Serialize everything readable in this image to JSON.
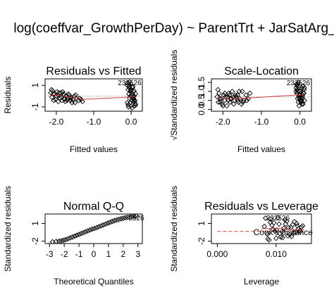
{
  "figure": {
    "title": "log(coeffvar_GrowthPerDay) ~ ParentTrt + JarSatArg_"
  },
  "chart_data": [
    {
      "type": "scatter",
      "title": "Residuals vs Fitted",
      "xlabel": "Fitted values",
      "ylabel": "Residuals",
      "xlim": [
        -2.3,
        0.3
      ],
      "ylim": [
        -1.4,
        1.6
      ],
      "x_ticks": [
        -2.0,
        -1.0,
        0.0
      ],
      "x_tick_labels": [
        "-2.0",
        "-1.0",
        "0.0"
      ],
      "y_ticks": [
        -1,
        1
      ],
      "y_tick_labels": [
        "-1",
        "1"
      ],
      "point_labels": [
        "23",
        "25",
        "26"
      ],
      "smooth_color": "#d04040",
      "series": [
        {
          "x": [
            -2.15,
            -2.12,
            -2.1,
            -2.05,
            -2.02,
            -1.98,
            -1.95,
            -1.9,
            -1.88,
            -1.85,
            -1.82,
            -1.8,
            -1.76,
            -1.72,
            -1.7,
            -1.66,
            -1.62,
            -1.6,
            -1.56,
            -1.5,
            -1.46,
            -1.4,
            -1.34,
            -1.3,
            -2.13,
            -2.07,
            -2.0,
            -1.93,
            -1.86,
            -1.78,
            -1.68,
            -1.58,
            -1.48,
            -1.38,
            -2.08,
            -1.95,
            -1.83,
            -1.71,
            -1.61,
            -1.52
          ],
          "y": [
            0.3,
            -0.1,
            0.5,
            0.2,
            -0.3,
            0.4,
            0.1,
            -0.2,
            0.3,
            -0.4,
            0.1,
            0.2,
            -0.5,
            0.0,
            -0.2,
            0.1,
            -0.4,
            -0.1,
            -0.3,
            -0.6,
            -0.2,
            -0.4,
            -0.3,
            -0.5,
            0.6,
            -0.4,
            0.0,
            0.3,
            -0.1,
            -0.3,
            0.2,
            -0.6,
            0.1,
            -0.2,
            0.2,
            -0.5,
            0.4,
            -0.4,
            -0.2,
            0.0
          ]
        },
        {
          "x": [
            -0.1,
            -0.08,
            -0.06,
            -0.04,
            -0.02,
            0.0,
            0.02,
            0.04,
            0.06,
            0.08,
            0.1,
            0.12,
            -0.09,
            -0.05,
            -0.01,
            0.03,
            0.07,
            0.11,
            -0.07,
            -0.03,
            0.01,
            0.05,
            0.09,
            -0.06,
            0.0,
            0.06,
            0.12,
            -0.1,
            -0.04,
            0.04,
            0.1,
            -0.02,
            0.02,
            0.08,
            -0.08
          ],
          "y": [
            1.0,
            0.6,
            0.2,
            -0.2,
            -0.6,
            -0.9,
            -1.1,
            0.8,
            0.4,
            0.0,
            -0.4,
            -0.8,
            1.2,
            0.9,
            0.5,
            0.1,
            -0.3,
            -0.7,
            -1.0,
            0.7,
            0.3,
            -0.1,
            -0.5,
            1.1,
            0.6,
            -0.2,
            0.2,
            -0.6,
            1.3,
            0.9,
            -0.9,
            0.0,
            -0.4,
            0.5,
            -0.8
          ]
        }
      ],
      "smooth": {
        "x": [
          -2.15,
          -1.8,
          -1.5,
          -1.3,
          -0.7,
          -0.1,
          0.12
        ],
        "y": [
          0.15,
          0.0,
          -0.2,
          -0.3,
          -0.2,
          -0.1,
          0.0
        ]
      }
    },
    {
      "type": "scatter",
      "title": "Scale-Location",
      "xlabel": "Fitted values",
      "ylabel": "√Standardized residuals",
      "xlim": [
        -2.3,
        0.3
      ],
      "ylim": [
        -0.1,
        1.7
      ],
      "x_ticks": [
        -2.0,
        -1.0,
        0.0
      ],
      "x_tick_labels": [
        "-2.0",
        "-1.0",
        "0.0"
      ],
      "y_ticks": [
        0.0,
        0.5,
        1.0,
        1.5
      ],
      "y_tick_labels": [
        "0.0",
        "0.5",
        "1.0",
        "1.5"
      ],
      "point_labels": [
        "23",
        "25",
        "26"
      ],
      "smooth_color": "#d04040",
      "series": [
        {
          "x": [
            -2.15,
            -2.12,
            -2.1,
            -2.05,
            -2.02,
            -1.98,
            -1.95,
            -1.9,
            -1.88,
            -1.85,
            -1.82,
            -1.8,
            -1.76,
            -1.72,
            -1.7,
            -1.66,
            -1.62,
            -1.6,
            -1.56,
            -1.5,
            -1.46,
            -1.4,
            -1.34,
            -1.3,
            -2.13,
            -2.07,
            -2.0,
            -1.93,
            -1.86,
            -1.78,
            -1.68,
            -1.58,
            -1.48,
            -1.38,
            -2.08,
            -1.95,
            -1.83,
            -1.71,
            -1.61,
            -1.52
          ],
          "y": [
            0.7,
            0.4,
            0.9,
            0.6,
            0.3,
            0.8,
            0.5,
            0.2,
            0.7,
            0.9,
            0.4,
            0.6,
            1.0,
            0.3,
            0.5,
            0.7,
            0.8,
            0.4,
            0.6,
            1.0,
            0.5,
            0.8,
            0.6,
            0.9,
            1.1,
            0.4,
            0.2,
            0.7,
            0.5,
            0.6,
            0.8,
            1.0,
            0.4,
            0.5,
            0.6,
            0.9,
            0.8,
            0.7,
            0.5,
            0.3
          ]
        },
        {
          "x": [
            -0.1,
            -0.08,
            -0.06,
            -0.04,
            -0.02,
            0.0,
            0.02,
            0.04,
            0.06,
            0.08,
            0.1,
            0.12,
            -0.09,
            -0.05,
            -0.01,
            0.03,
            0.07,
            0.11,
            -0.07,
            -0.03,
            0.01,
            0.05,
            0.09,
            -0.06,
            0.0,
            0.06,
            0.12,
            -0.1,
            -0.04,
            0.04,
            0.1,
            -0.02,
            0.02,
            0.08,
            -0.08
          ],
          "y": [
            1.2,
            0.9,
            0.6,
            0.4,
            0.8,
            1.0,
            1.1,
            0.5,
            0.7,
            0.3,
            0.9,
            1.2,
            1.4,
            1.0,
            0.6,
            0.4,
            0.8,
            1.1,
            1.3,
            0.7,
            0.5,
            0.3,
            0.9,
            1.4,
            0.8,
            0.6,
            0.5,
            1.0,
            1.5,
            1.2,
            0.9,
            0.2,
            0.7,
            1.3,
            1.1
          ]
        }
      ],
      "smooth": {
        "x": [
          -2.15,
          -1.5,
          -1.0,
          -0.5,
          0.12
        ],
        "y": [
          0.6,
          0.62,
          0.68,
          0.75,
          0.82
        ]
      }
    },
    {
      "type": "scatter",
      "title": "Normal Q-Q",
      "xlabel": "Theoretical Quantiles",
      "ylabel": "Standardized residuals",
      "xlim": [
        -3.3,
        3.3
      ],
      "ylim": [
        -2.4,
        2.6
      ],
      "x_ticks": [
        -3,
        -2,
        -1,
        0,
        1,
        2,
        3
      ],
      "x_tick_labels": [
        "-3",
        "-2",
        "-1",
        "0",
        "1",
        "2",
        "3"
      ],
      "y_ticks": [
        -2,
        1
      ],
      "y_tick_labels": [
        "-2",
        "1"
      ],
      "point_labels": [
        "25",
        "26"
      ],
      "reference_line": {
        "x": [
          -3.3,
          3.3
        ],
        "y": [
          -2.4,
          2.4
        ]
      },
      "series": [
        {
          "x": [
            -2.8,
            -2.55,
            -2.35,
            -2.2,
            -2.05,
            -1.9,
            -1.75,
            -1.6,
            -1.45,
            -1.3,
            -1.15,
            -1.0,
            -0.85,
            -0.7,
            -0.55,
            -0.4,
            -0.25,
            -0.1,
            0.05,
            0.2,
            0.35,
            0.5,
            0.65,
            0.8,
            0.95,
            1.1,
            1.25,
            1.4,
            1.55,
            1.7,
            1.85,
            2.0,
            2.15,
            2.3,
            2.45,
            2.6,
            2.75,
            2.9
          ],
          "y": [
            -2.1,
            -2.05,
            -2.0,
            -1.95,
            -1.85,
            -1.75,
            -1.6,
            -1.45,
            -1.3,
            -1.15,
            -1.0,
            -0.85,
            -0.7,
            -0.55,
            -0.4,
            -0.25,
            -0.1,
            0.05,
            0.15,
            0.3,
            0.45,
            0.6,
            0.75,
            0.9,
            1.05,
            1.2,
            1.35,
            1.5,
            1.6,
            1.7,
            1.8,
            1.9,
            2.0,
            2.05,
            2.1,
            2.15,
            2.2,
            2.25
          ]
        }
      ]
    },
    {
      "type": "scatter",
      "title": "Residuals vs Leverage",
      "xlabel": "Leverage",
      "ylabel": "Standardized residuals",
      "xlim": [
        -0.001,
        0.016
      ],
      "ylim": [
        -2.4,
        2.6
      ],
      "x_ticks": [
        0.0,
        0.01
      ],
      "x_tick_labels": [
        "0.000",
        "0.010"
      ],
      "y_ticks": [
        -2,
        1
      ],
      "y_tick_labels": [
        "-2",
        "1"
      ],
      "point_labels": [
        "23",
        "25",
        "26"
      ],
      "annotation": "Cook's distance",
      "smooth_color": "#d04040",
      "series": [
        {
          "x": [
            0.008,
            0.0085,
            0.009,
            0.0095,
            0.01,
            0.0105,
            0.011,
            0.0115,
            0.012,
            0.0125,
            0.013,
            0.0135,
            0.014,
            0.0145,
            0.0082,
            0.0088,
            0.0093,
            0.0098,
            0.0103,
            0.0108,
            0.0113,
            0.0118,
            0.0123,
            0.0128,
            0.0133,
            0.0138,
            0.0143,
            0.0086,
            0.0096,
            0.0106,
            0.0116,
            0.0126,
            0.0136,
            0.0091,
            0.0101,
            0.0111,
            0.0121,
            0.0131,
            0.0141
          ],
          "y": [
            0.5,
            -0.8,
            1.2,
            0.0,
            -1.5,
            0.9,
            -0.4,
            1.6,
            -1.1,
            0.3,
            -0.6,
            1.0,
            -0.2,
            0.6,
            1.9,
            -1.8,
            0.7,
            -0.3,
            2.0,
            -1.3,
            0.2,
            1.4,
            -0.9,
            0.8,
            -0.5,
            0.1,
            0.4,
            -1.6,
            1.1,
            -0.7,
            0.9,
            -1.2,
            0.6,
            1.7,
            -0.1,
            -1.4,
            0.3,
            1.3,
            -0.4
          ]
        }
      ],
      "smooth": {
        "x": [
          0.0075,
          0.0105,
          0.0125,
          0.0148
        ],
        "y": [
          0.1,
          0.2,
          0.0,
          -0.1
        ]
      },
      "cook_line": {
        "x": [
          0.0,
          0.0145
        ],
        "y": [
          -0.35,
          -0.35
        ]
      }
    }
  ]
}
